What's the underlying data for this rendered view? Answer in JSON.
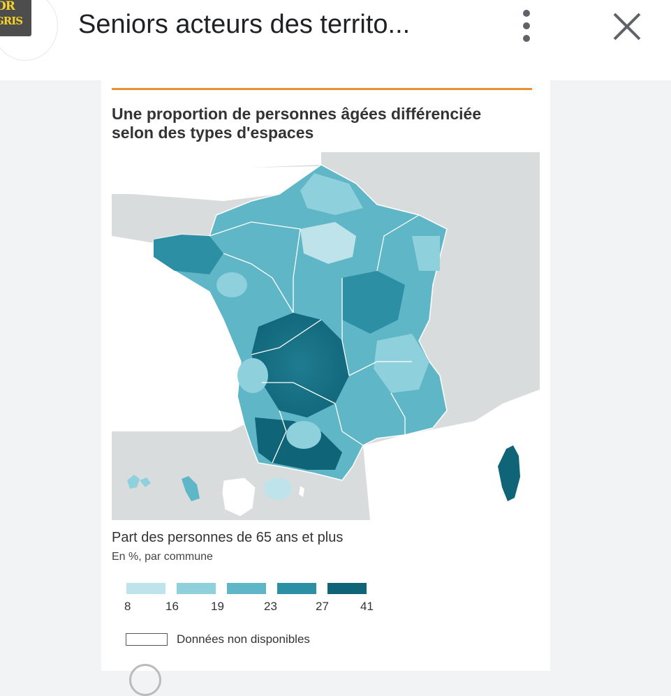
{
  "header": {
    "favicon_text_1": "OR",
    "favicon_text_2": "GRIS",
    "title": "Seniors acteurs des territo...",
    "menu_icon": "more-vert-icon",
    "close_icon": "close-icon"
  },
  "article": {
    "map_title_line1": "Une proportion de personnes âgées différenciée",
    "map_title_line2": "selon des types d'espaces",
    "legend_title": "Part des personnes de 65 ans et plus",
    "legend_subtitle": "En %, par commune",
    "legend_swatches": [
      {
        "color": "#bfe3eb"
      },
      {
        "color": "#8ed0dc"
      },
      {
        "color": "#5eb6c6"
      },
      {
        "color": "#2d8fa3"
      },
      {
        "color": "#106478"
      }
    ],
    "legend_ticks": [
      "8",
      "16",
      "19",
      "23",
      "27",
      "41"
    ],
    "legend_na_label": "Données non disponibles"
  },
  "colors": {
    "accent": "#e8912e",
    "land": "#d9dcdd",
    "sea": "#ffffff",
    "border": "#ffffff"
  }
}
